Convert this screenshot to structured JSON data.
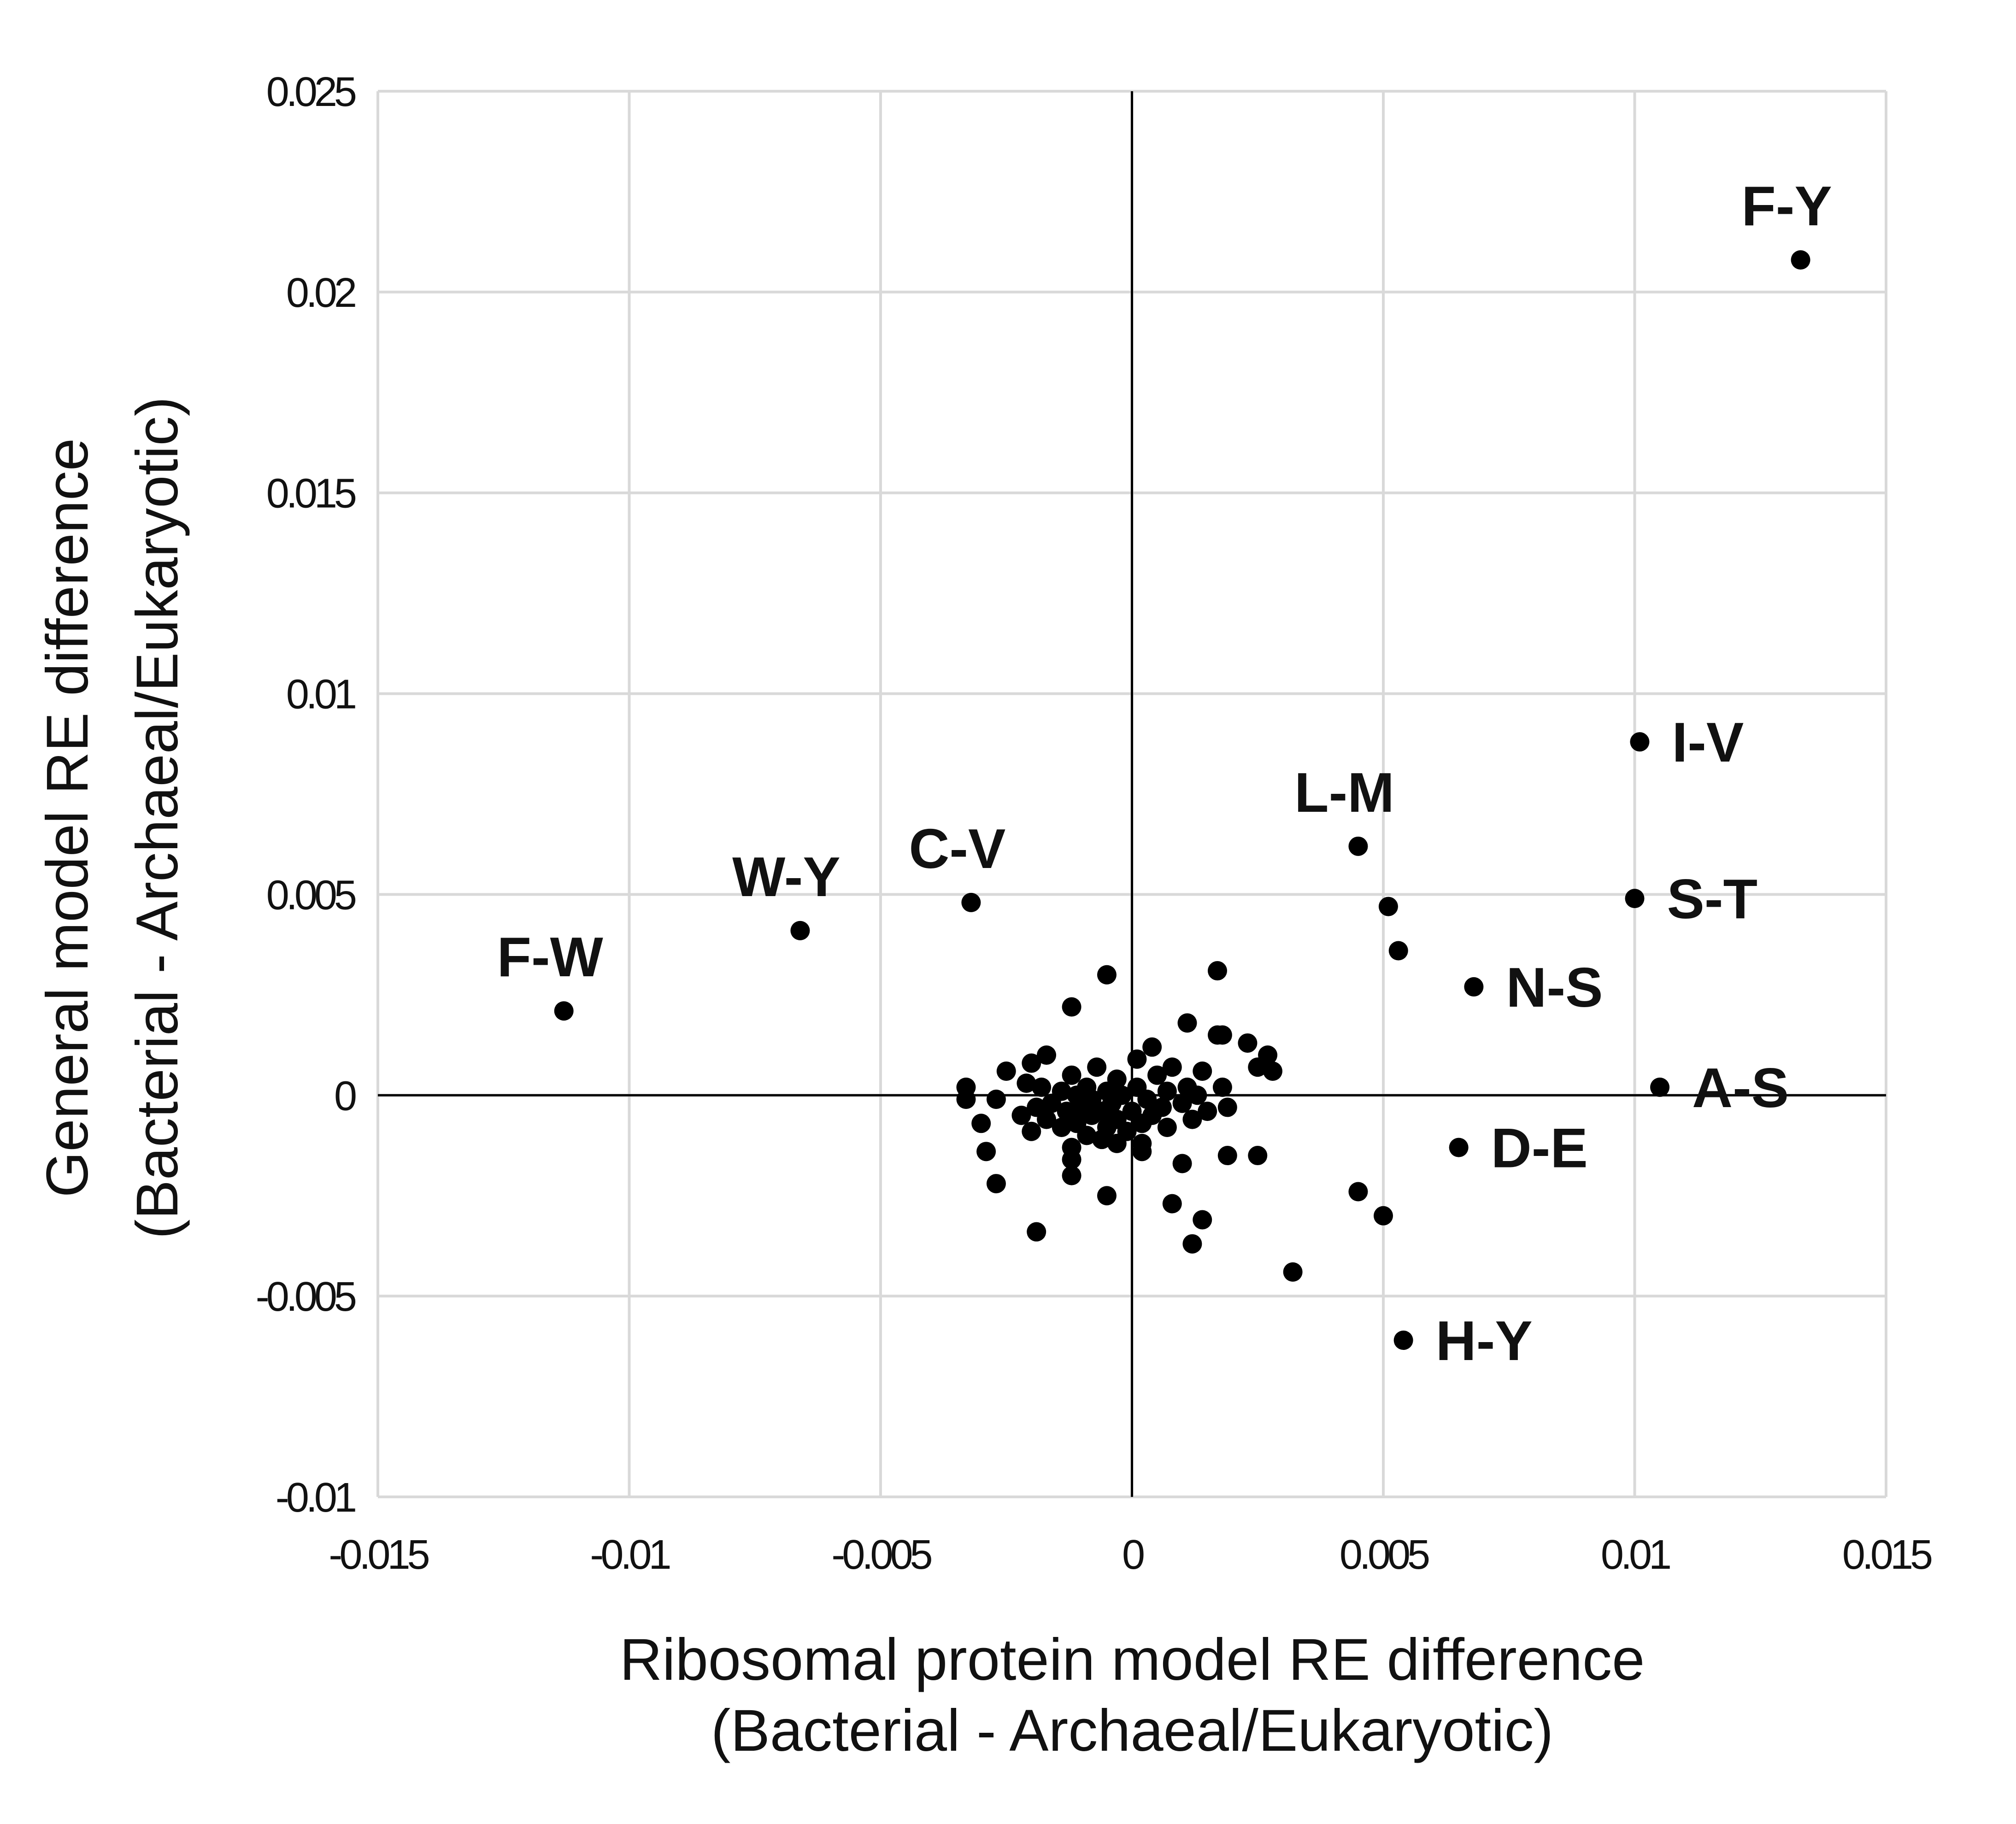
{
  "chart_data": {
    "type": "scatter",
    "title": "",
    "xlabel": [
      "Ribosomal protein model RE difference",
      "(Bacterial - Archaeal/Eukaryotic)"
    ],
    "ylabel": [
      "General model RE difference",
      "(Bacterial - Archaeal/Eukaryotic)"
    ],
    "xlim": [
      -0.015,
      0.015
    ],
    "ylim": [
      -0.01,
      0.025
    ],
    "grid": true,
    "xticks": [
      {
        "value": -0.015,
        "label": "-0.015"
      },
      {
        "value": -0.01,
        "label": "-0.01"
      },
      {
        "value": -0.005,
        "label": "-0.005"
      },
      {
        "value": 0,
        "label": "0"
      },
      {
        "value": 0.005,
        "label": "0.005"
      },
      {
        "value": 0.01,
        "label": "0.01"
      },
      {
        "value": 0.015,
        "label": "0.015"
      }
    ],
    "yticks": [
      {
        "value": -0.01,
        "label": "-0.01"
      },
      {
        "value": -0.005,
        "label": "-0.005"
      },
      {
        "value": 0,
        "label": "0"
      },
      {
        "value": 0.005,
        "label": "0.005"
      },
      {
        "value": 0.01,
        "label": "0.01"
      },
      {
        "value": 0.015,
        "label": "0.015"
      },
      {
        "value": 0.02,
        "label": "0.02"
      },
      {
        "value": 0.025,
        "label": "0.025"
      }
    ],
    "labeled_points": [
      {
        "label": "F-Y",
        "x": 0.0133,
        "y": 0.0208,
        "pos": "above"
      },
      {
        "label": "I-V",
        "x": 0.0101,
        "y": 0.0088,
        "pos": "right"
      },
      {
        "label": "L-M",
        "x": 0.0045,
        "y": 0.0062,
        "pos": "above"
      },
      {
        "label": "S-T",
        "x": 0.01,
        "y": 0.0049,
        "pos": "right"
      },
      {
        "label": "C-V",
        "x": -0.0032,
        "y": 0.0048,
        "pos": "above"
      },
      {
        "label": "W-Y",
        "x": -0.0066,
        "y": 0.0041,
        "pos": "above"
      },
      {
        "label": "F-W",
        "x": -0.0113,
        "y": 0.0021,
        "pos": "above"
      },
      {
        "label": "N-S",
        "x": 0.0068,
        "y": 0.0027,
        "pos": "right"
      },
      {
        "label": "A-S",
        "x": 0.0105,
        "y": 0.0002,
        "pos": "right"
      },
      {
        "label": "D-E",
        "x": 0.0065,
        "y": -0.0013,
        "pos": "right"
      },
      {
        "label": "H-Y",
        "x": 0.0054,
        "y": -0.0061,
        "pos": "right"
      }
    ],
    "points": [
      {
        "x": 0.0051,
        "y": 0.0047
      },
      {
        "x": 0.0053,
        "y": 0.0036
      },
      {
        "x": 0.0045,
        "y": -0.0024
      },
      {
        "x": 0.005,
        "y": -0.003
      },
      {
        "x": 0.0032,
        "y": -0.0044
      },
      {
        "x": -0.0005,
        "y": 0.003
      },
      {
        "x": 0.0017,
        "y": 0.0031
      },
      {
        "x": -0.0012,
        "y": 0.0022
      },
      {
        "x": 0.0011,
        "y": 0.0018
      },
      {
        "x": 0.0017,
        "y": 0.0015
      },
      {
        "x": 0.0018,
        "y": 0.0015
      },
      {
        "x": 0.0023,
        "y": 0.0013
      },
      {
        "x": 0.0004,
        "y": 0.0012
      },
      {
        "x": 0.0027,
        "y": 0.001
      },
      {
        "x": -0.0017,
        "y": 0.001
      },
      {
        "x": 0.0001,
        "y": 0.0009
      },
      {
        "x": -0.002,
        "y": 0.0008
      },
      {
        "x": 0.0025,
        "y": 0.0007
      },
      {
        "x": 0.0008,
        "y": 0.0007
      },
      {
        "x": -0.0007,
        "y": 0.0007
      },
      {
        "x": 0.0014,
        "y": 0.0006
      },
      {
        "x": -0.0025,
        "y": 0.0006
      },
      {
        "x": 0.0028,
        "y": 0.0006
      },
      {
        "x": -0.0012,
        "y": 0.0005
      },
      {
        "x": 0.0005,
        "y": 0.0005
      },
      {
        "x": -0.0003,
        "y": 0.0004
      },
      {
        "x": -0.0021,
        "y": 0.0003
      },
      {
        "x": 0.0011,
        "y": 0.0002
      },
      {
        "x": -0.0033,
        "y": 0.0002
      },
      {
        "x": 0.0018,
        "y": 0.0002
      },
      {
        "x": -0.0018,
        "y": 0.0002
      },
      {
        "x": -0.0009,
        "y": 0.0002
      },
      {
        "x": 0.0001,
        "y": 0.0002
      },
      {
        "x": 0.0007,
        "y": 0.0001
      },
      {
        "x": -0.0014,
        "y": 0.0001
      },
      {
        "x": -0.0005,
        "y": 0.0001
      },
      {
        "x": 0.0013,
        "y": 0.0
      },
      {
        "x": -0.0002,
        "y": 0.0
      },
      {
        "x": -0.0011,
        "y": 0.0
      },
      {
        "x": -0.0027,
        "y": -0.0001
      },
      {
        "x": -0.0033,
        "y": -0.0001
      },
      {
        "x": 0.0003,
        "y": -0.0001
      },
      {
        "x": -0.0008,
        "y": -0.0001
      },
      {
        "x": 0.001,
        "y": -0.0002
      },
      {
        "x": -0.0016,
        "y": -0.0002
      },
      {
        "x": -0.0004,
        "y": -0.0002
      },
      {
        "x": 0.0019,
        "y": -0.0003
      },
      {
        "x": -0.001,
        "y": -0.0003
      },
      {
        "x": 0.0006,
        "y": -0.0003
      },
      {
        "x": -0.0019,
        "y": -0.0003
      },
      {
        "x": -0.0006,
        "y": -0.0004
      },
      {
        "x": 0.0015,
        "y": -0.0004
      },
      {
        "x": -0.0013,
        "y": -0.0004
      },
      {
        "x": 0.0,
        "y": -0.0004
      },
      {
        "x": -0.0022,
        "y": -0.0005
      },
      {
        "x": 0.0004,
        "y": -0.0005
      },
      {
        "x": -0.0008,
        "y": -0.0005
      },
      {
        "x": 0.0012,
        "y": -0.0006
      },
      {
        "x": -0.0017,
        "y": -0.0006
      },
      {
        "x": -0.0003,
        "y": -0.0006
      },
      {
        "x": -0.003,
        "y": -0.0007
      },
      {
        "x": -0.0011,
        "y": -0.0007
      },
      {
        "x": 0.0002,
        "y": -0.0007
      },
      {
        "x": -0.0005,
        "y": -0.0008
      },
      {
        "x": -0.0014,
        "y": -0.0008
      },
      {
        "x": 0.0007,
        "y": -0.0008
      },
      {
        "x": -0.002,
        "y": -0.0009
      },
      {
        "x": -0.0001,
        "y": -0.0009
      },
      {
        "x": -0.0009,
        "y": -0.001
      },
      {
        "x": -0.0006,
        "y": -0.0011
      },
      {
        "x": -0.0003,
        "y": -0.0012
      },
      {
        "x": 0.0002,
        "y": -0.0012
      },
      {
        "x": -0.0012,
        "y": -0.0013
      },
      {
        "x": -0.0029,
        "y": -0.0014
      },
      {
        "x": 0.0002,
        "y": -0.0014
      },
      {
        "x": 0.0019,
        "y": -0.0015
      },
      {
        "x": 0.0025,
        "y": -0.0015
      },
      {
        "x": -0.0012,
        "y": -0.0016
      },
      {
        "x": 0.001,
        "y": -0.0017
      },
      {
        "x": -0.0012,
        "y": -0.002
      },
      {
        "x": -0.0027,
        "y": -0.0022
      },
      {
        "x": -0.0005,
        "y": -0.0025
      },
      {
        "x": 0.0008,
        "y": -0.0027
      },
      {
        "x": 0.0014,
        "y": -0.0031
      },
      {
        "x": -0.0019,
        "y": -0.0034
      },
      {
        "x": 0.0012,
        "y": -0.0037
      }
    ]
  }
}
